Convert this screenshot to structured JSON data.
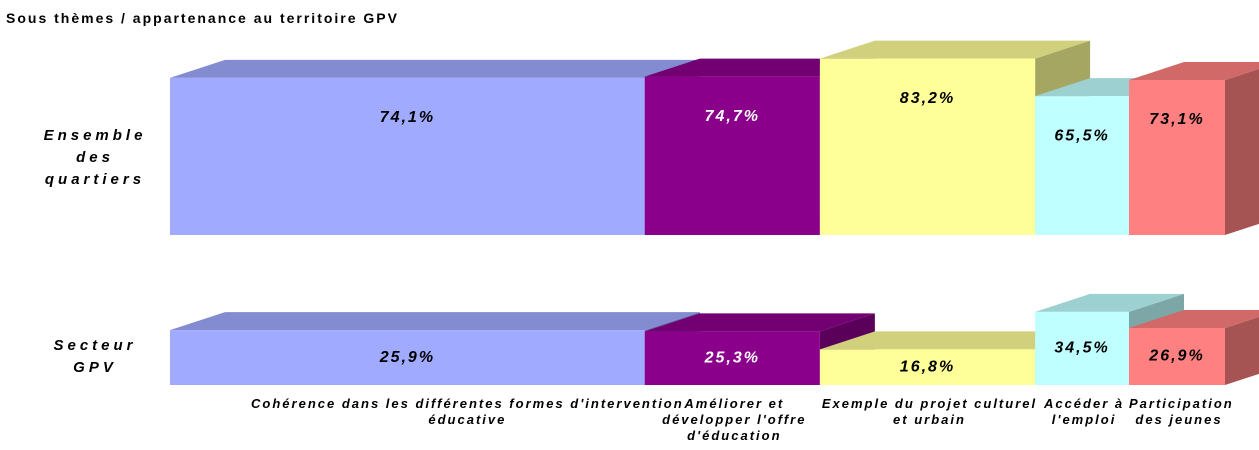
{
  "chart_data": {
    "type": "mekko3d",
    "title": "Sous thèmes / appartenance au territoire GPV",
    "categories": [
      "Cohérence dans les différentes formes d'intervention éducative",
      "Améliorer et développer l'offre d'éducation",
      "Exemple du projet culturel et urbain",
      "Accéder à l'emploi",
      "Participation des jeunes"
    ],
    "widths": [
      45,
      16.6,
      20.4,
      8.9,
      9.1
    ],
    "colors": [
      "#a0aaff",
      "#8b008b",
      "#ffff99",
      "#c0ffff",
      "#ff8080"
    ],
    "series": [
      {
        "name": "Ensemble des quartiers",
        "values": [
          74.1,
          74.7,
          83.2,
          65.5,
          73.1
        ],
        "value_labels": [
          "74,1%",
          "74,7%",
          "83,2%",
          "65,5%",
          "73,1%"
        ]
      },
      {
        "name": "Secteur GPV",
        "values": [
          25.9,
          25.3,
          16.8,
          34.5,
          26.9
        ],
        "value_labels": [
          "25,9%",
          "25,3%",
          "16,8%",
          "34,5%",
          "26,9%"
        ]
      }
    ]
  }
}
